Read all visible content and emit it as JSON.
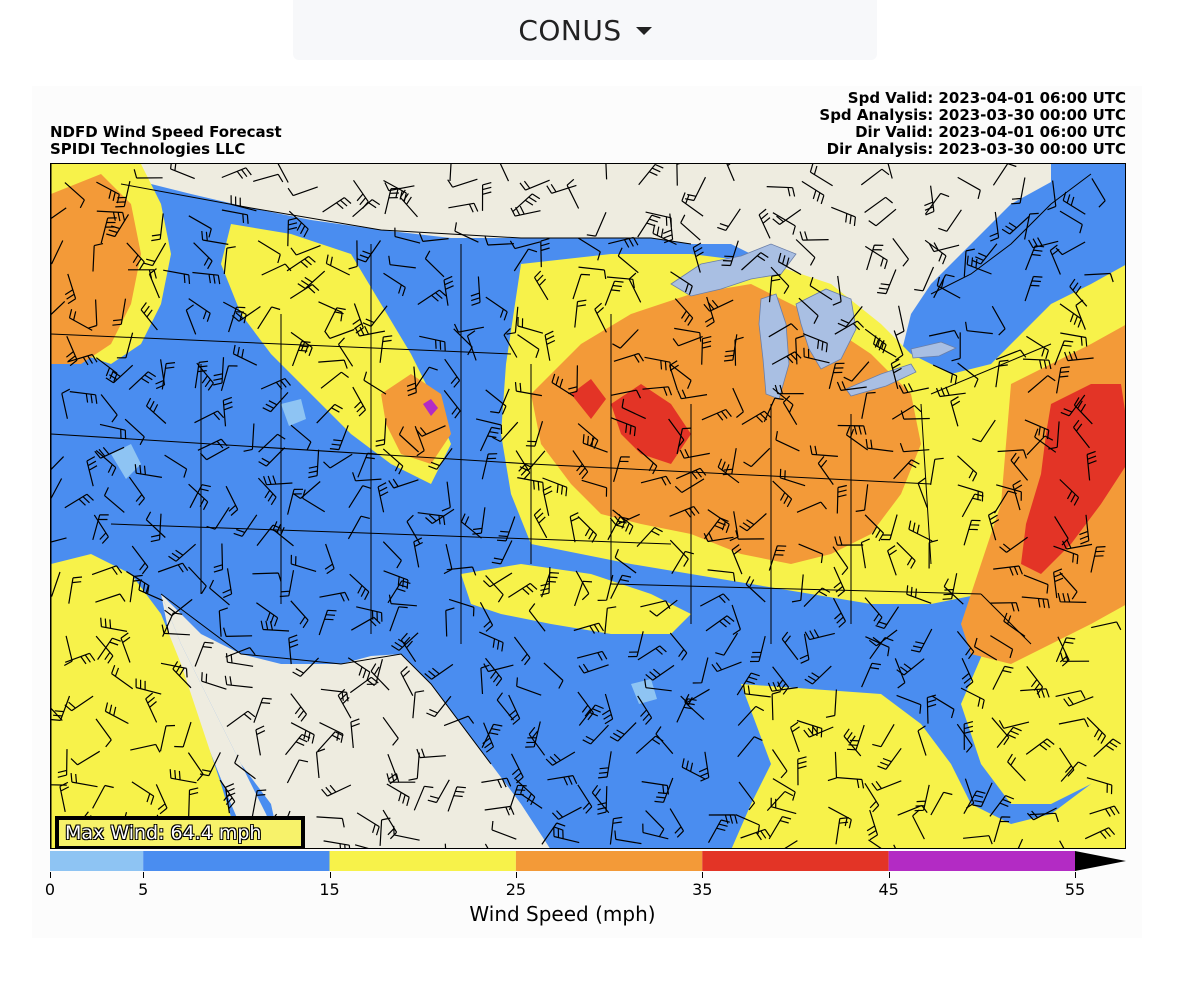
{
  "region_selector": {
    "label": "CONUS",
    "icon": "caret-down-icon"
  },
  "figure": {
    "title_lines": [
      "NDFD Wind Speed Forecast",
      "SPIDI Technologies LLC"
    ],
    "valid_lines": [
      "Spd Valid: 2023-04-01 06:00 UTC",
      "Spd Analysis: 2023-03-30 00:00 UTC",
      "Dir Valid: 2023-04-01 06:00 UTC",
      "Dir Analysis: 2023-03-30 00:00 UTC"
    ],
    "max_wind": "Max Wind: 64.4 mph"
  },
  "colorbar": {
    "label": "Wind Speed (mph)",
    "ticks": [
      "0",
      "5",
      "15",
      "25",
      "35",
      "45",
      "55"
    ],
    "bins": [
      {
        "from": 0,
        "to": 5,
        "color": "#8ec4f3"
      },
      {
        "from": 5,
        "to": 15,
        "color": "#4a8df0"
      },
      {
        "from": 15,
        "to": 25,
        "color": "#f7f24a"
      },
      {
        "from": 25,
        "to": 35,
        "color": "#f39a38"
      },
      {
        "from": 35,
        "to": 45,
        "color": "#e33426"
      },
      {
        "from": 45,
        "to": 55,
        "color": "#b32bc4"
      }
    ],
    "extend": "max",
    "extend_color": "#000000"
  },
  "map_colors": {
    "land_outside": "#eeece0",
    "lakes": "#a9bfe3",
    "boundaries": "#000000"
  }
}
